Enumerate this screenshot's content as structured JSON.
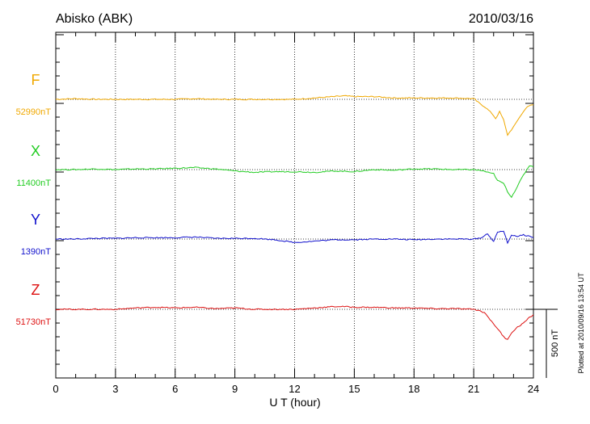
{
  "chart_data": {
    "type": "line",
    "title": "Abisko (ABK)",
    "date": "2010/03/16",
    "xlabel": "U T (hour)",
    "xlim": [
      0,
      24
    ],
    "xticks": [
      "0",
      "3",
      "6",
      "9",
      "12",
      "15",
      "18",
      "21",
      "24"
    ],
    "scale_label": "500 nT",
    "scale_nT": 500,
    "footer": "Plotted at 2010/09/16 13:54 UT",
    "series": [
      {
        "name": "F",
        "baseline_label": "52990nT",
        "color": "#f0a800",
        "x": [
          0,
          1,
          2,
          3,
          4,
          5,
          6,
          7,
          8,
          9,
          10,
          11,
          12,
          13,
          14,
          14.5,
          15,
          16,
          17,
          18,
          19,
          20,
          21,
          21.3,
          21.6,
          21.9,
          22.1,
          22.3,
          22.5,
          22.7,
          22.9,
          23.1,
          23.3,
          23.5,
          23.7,
          24
        ],
        "y": [
          0,
          5,
          0,
          0,
          0,
          0,
          0,
          5,
          0,
          0,
          0,
          0,
          0,
          10,
          20,
          25,
          20,
          20,
          10,
          10,
          10,
          10,
          5,
          -30,
          -60,
          -100,
          -140,
          -90,
          -150,
          -260,
          -220,
          -180,
          -130,
          -90,
          -50,
          -40
        ]
      },
      {
        "name": "X",
        "baseline_label": "11400nT",
        "color": "#22cc22",
        "x": [
          0,
          1,
          2,
          3,
          4,
          5,
          6,
          7,
          8,
          9,
          10,
          11,
          12,
          13,
          14,
          15,
          16,
          17,
          18,
          19,
          20,
          21,
          21.5,
          21.8,
          22,
          22.2,
          22.5,
          22.7,
          22.9,
          23.2,
          23.5,
          23.8,
          24
        ],
        "y": [
          0,
          0,
          5,
          0,
          5,
          5,
          10,
          15,
          5,
          -10,
          -20,
          -15,
          -15,
          -20,
          -10,
          -15,
          0,
          -5,
          5,
          5,
          0,
          0,
          -10,
          -25,
          -30,
          -80,
          -100,
          -160,
          -200,
          -120,
          -40,
          30,
          20
        ]
      },
      {
        "name": "Y",
        "baseline_label": "1390nT",
        "color": "#1010cc",
        "x": [
          0,
          1,
          2,
          3,
          4,
          5,
          6,
          7,
          8,
          9,
          10,
          11,
          12,
          13,
          14,
          15,
          16,
          17,
          18,
          19,
          20,
          21,
          21.4,
          21.7,
          22,
          22.2,
          22.5,
          22.7,
          22.9,
          23.2,
          23.5,
          23.8,
          24
        ],
        "y": [
          0,
          0,
          5,
          5,
          10,
          10,
          10,
          15,
          5,
          5,
          5,
          -5,
          -25,
          -15,
          -5,
          -5,
          0,
          0,
          -5,
          0,
          0,
          0,
          10,
          40,
          -20,
          50,
          60,
          -30,
          30,
          20,
          30,
          20,
          10
        ]
      },
      {
        "name": "Z",
        "baseline_label": "51730nT",
        "color": "#dd1111",
        "x": [
          0,
          1,
          2,
          3,
          4,
          5,
          6,
          7,
          8,
          9,
          10,
          11,
          12,
          13,
          14,
          14.5,
          15,
          16,
          17,
          18,
          19,
          20,
          21,
          21.3,
          21.6,
          21.9,
          22.2,
          22.5,
          22.7,
          22.9,
          23.2,
          23.5,
          23.8,
          24
        ],
        "y": [
          0,
          0,
          0,
          0,
          10,
          15,
          10,
          15,
          5,
          10,
          0,
          0,
          0,
          10,
          20,
          20,
          15,
          15,
          10,
          10,
          5,
          5,
          0,
          -10,
          -30,
          -90,
          -140,
          -200,
          -220,
          -170,
          -130,
          -100,
          -60,
          -40
        ]
      }
    ]
  }
}
